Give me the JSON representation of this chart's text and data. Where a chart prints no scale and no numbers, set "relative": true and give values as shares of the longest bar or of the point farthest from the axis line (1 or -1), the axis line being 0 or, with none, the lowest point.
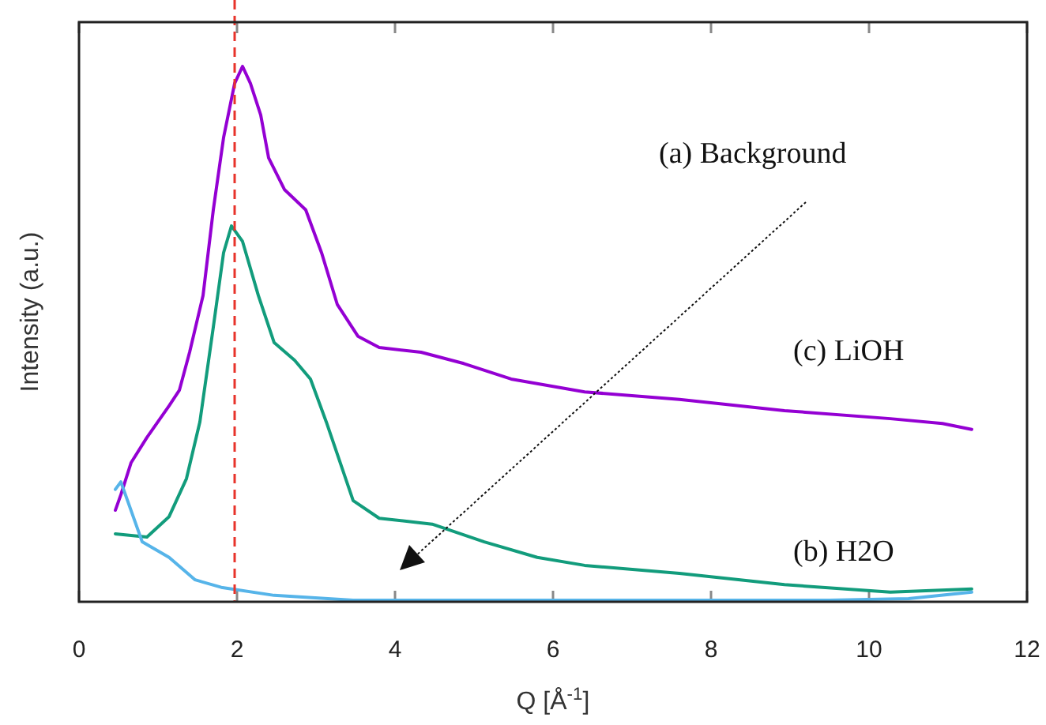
{
  "chart_data": {
    "type": "line",
    "relative": true,
    "xlabel": "Q [Å$^{-1}$]",
    "ylabel": "Intensity (a.u.)",
    "xlim": [
      0,
      12
    ],
    "xticks": [
      0,
      2,
      4,
      6,
      8,
      10,
      12
    ],
    "grid": false,
    "line_style": "solid",
    "ref_lines": [
      {
        "axis": "x",
        "value": 1.97,
        "color": "#e8332a",
        "line_style": "dashed"
      }
    ],
    "series": [
      {
        "name": "(c) LiOH",
        "color": "#9400d3",
        "x": [
          0.46,
          0.53,
          0.66,
          0.86,
          1.14,
          1.27,
          1.4,
          1.57,
          1.7,
          1.83,
          1.97,
          2.07,
          2.17,
          2.3,
          2.4,
          2.6,
          2.87,
          3.07,
          3.27,
          3.53,
          3.8,
          4.33,
          4.87,
          5.47,
          6.4,
          7.6,
          8.93,
          10.27,
          10.93,
          11.3
        ],
        "values": [
          0.171,
          0.2,
          0.26,
          0.307,
          0.366,
          0.395,
          0.466,
          0.572,
          0.732,
          0.867,
          0.968,
          1.0,
          0.968,
          0.909,
          0.829,
          0.77,
          0.732,
          0.652,
          0.555,
          0.496,
          0.475,
          0.466,
          0.445,
          0.416,
          0.392,
          0.378,
          0.357,
          0.342,
          0.333,
          0.322
        ]
      },
      {
        "name": "(b) H2O",
        "color": "#129c7c",
        "x": [
          0.46,
          0.86,
          1.14,
          1.36,
          1.53,
          1.7,
          1.83,
          1.93,
          2.07,
          2.27,
          2.47,
          2.73,
          2.93,
          3.13,
          3.47,
          3.8,
          4.47,
          5.13,
          5.8,
          6.4,
          7.6,
          8.93,
          10.27,
          11.3
        ],
        "values": [
          0.127,
          0.121,
          0.159,
          0.23,
          0.336,
          0.513,
          0.652,
          0.702,
          0.673,
          0.572,
          0.484,
          0.451,
          0.416,
          0.336,
          0.189,
          0.156,
          0.145,
          0.112,
          0.083,
          0.068,
          0.053,
          0.032,
          0.018,
          0.024
        ]
      },
      {
        "name": "(a) Background",
        "color": "#56b4e9",
        "x": [
          0.46,
          0.53,
          0.8,
          1.14,
          1.47,
          1.8,
          2.47,
          3.47,
          5,
          6.5,
          8,
          9.5,
          10.5,
          11.3
        ],
        "values": [
          0.21,
          0.224,
          0.112,
          0.083,
          0.041,
          0.027,
          0.012,
          0.003,
          0.003,
          0.003,
          0.003,
          0.003,
          0.006,
          0.018
        ]
      }
    ]
  }
}
